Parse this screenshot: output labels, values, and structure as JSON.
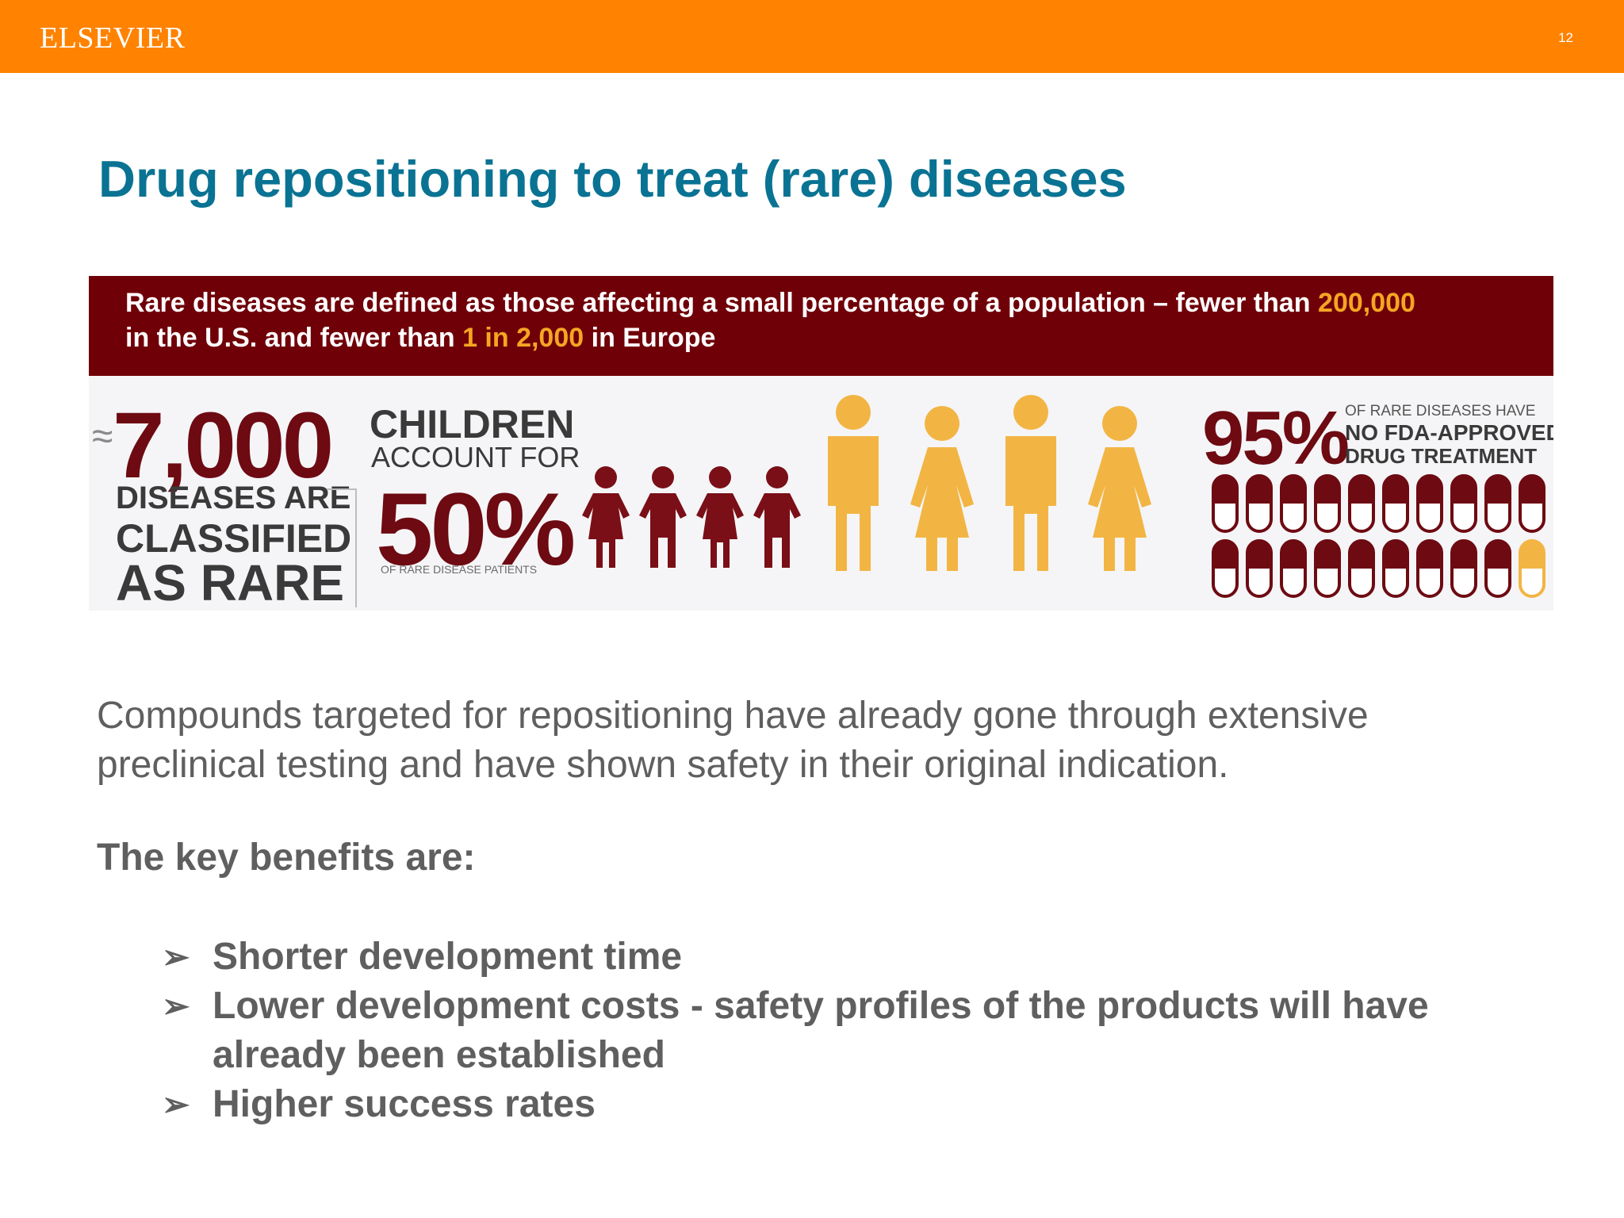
{
  "header": {
    "logo": "ELSEVIER",
    "page_number": "12",
    "brand_color": "#ff8200"
  },
  "title": "Drug repositioning to treat (rare) diseases",
  "infographic": {
    "banner": {
      "line1_pre": "Rare diseases are defined as those affecting a small percentage of a population – fewer than ",
      "line1_hl": "200,000",
      "line2_pre": "in the U.S. and fewer than ",
      "line2_hl": "1 in 2,000",
      "line2_post": " in Europe"
    },
    "diseases": {
      "approx": "≈",
      "number": "7,000",
      "line1": "DISEASES ARE",
      "line2": "CLASSIFIED",
      "line3": "AS RARE"
    },
    "children": {
      "line1": "CHILDREN",
      "line2": "ACCOUNT FOR",
      "percent": "50%",
      "note": "OF RARE DISEASE PATIENTS"
    },
    "treatment": {
      "percent": "95%",
      "note1": "OF RARE DISEASES HAVE",
      "note2": "NO FDA-APPROVED",
      "note3": "DRUG TREATMENT",
      "pills_total": 20,
      "pills_untreated": 19
    },
    "colors": {
      "dark_red": "#6e0a12",
      "gold": "#f2b544",
      "banner": "#700008"
    }
  },
  "body": {
    "paragraph": "Compounds targeted for repositioning have already gone through extensive preclinical testing and have shown safety in their original indication.",
    "benefits_heading": "The key benefits are:",
    "bullet_icon": "arrowhead-bullet-icon",
    "benefits": [
      "Shorter development time",
      "Lower development costs - safety profiles of the products will have already been established",
      "Higher success rates"
    ]
  }
}
